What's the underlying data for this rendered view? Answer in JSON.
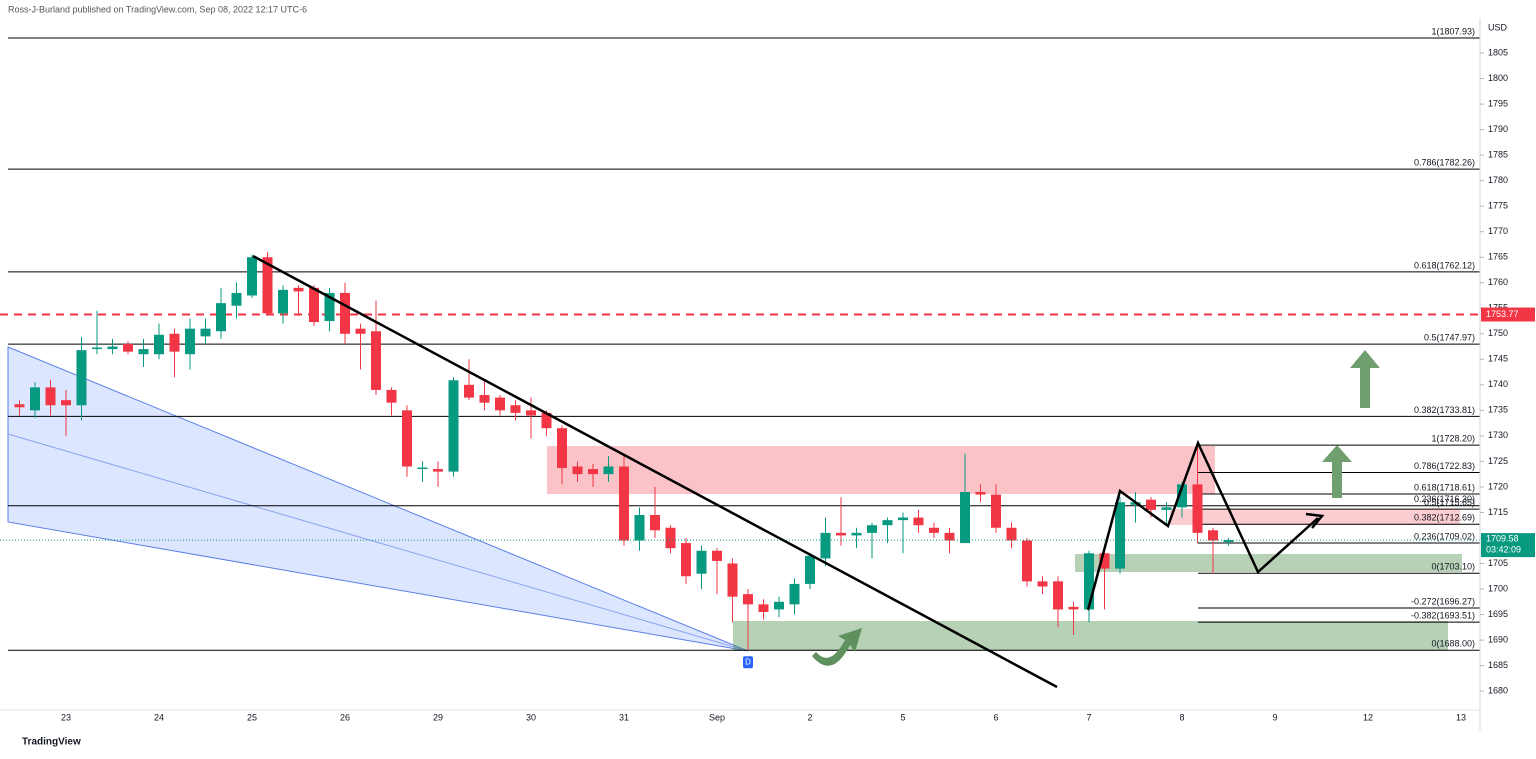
{
  "header": "Ross-J-Burland published on TradingView.com, Sep 08, 2022 12:17 UTC-6",
  "footer_logo": "TradingView",
  "chart_data": {
    "type": "candlestick",
    "currency": "USD",
    "up_color": "#089981",
    "down_color": "#f23645",
    "ylim": [
      1676.3,
      1811.86
    ],
    "yticks": [
      1680,
      1685,
      1690,
      1695,
      1700,
      1705,
      1710,
      1715,
      1720,
      1725,
      1730,
      1735,
      1740,
      1745,
      1750,
      1755,
      1760,
      1765,
      1770,
      1775,
      1780,
      1785,
      1790,
      1795,
      1800,
      1805
    ],
    "grid": false,
    "categories": [
      null,
      null,
      null,
      "23",
      null,
      null,
      null,
      null,
      null,
      "24",
      null,
      null,
      null,
      null,
      null,
      "25",
      null,
      null,
      null,
      null,
      null,
      "26",
      null,
      null,
      null,
      null,
      null,
      "29",
      null,
      null,
      null,
      null,
      null,
      "30",
      null,
      null,
      null,
      null,
      null,
      "31",
      null,
      null,
      null,
      null,
      null,
      "Sep",
      null,
      null,
      null,
      null,
      null,
      "2",
      null,
      null,
      null,
      null,
      null,
      "5",
      null,
      null,
      null,
      null,
      null,
      "6",
      null,
      null,
      null,
      null,
      null,
      "7",
      null,
      null,
      null,
      null,
      null,
      "8",
      null,
      null,
      null,
      null,
      null,
      "9",
      null,
      null,
      null,
      null,
      null,
      "12",
      null,
      null,
      null,
      null,
      null,
      "13"
    ],
    "open": [
      1736.2,
      1735,
      1739.5,
      1737,
      1736,
      1747,
      1747,
      1748,
      1746,
      1746,
      1750,
      1746,
      1749.5,
      1750.5,
      1755.5,
      1757.5,
      1765,
      1754,
      1759,
      1759,
      1752.5,
      1758,
      1751,
      1750.5,
      1739,
      1735,
      1723.5,
      1723.5,
      1723,
      1740,
      1738,
      1737.5,
      1736,
      1735,
      1734.5,
      1731.5,
      1724,
      1723.5,
      1722.5,
      1724,
      1709.5,
      1714.5,
      1712,
      1709,
      1703,
      1707.5,
      1705,
      1699,
      1697,
      1696,
      1697,
      1701,
      1706,
      1711,
      1710.5,
      1711,
      1712.5,
      1713.5,
      1714,
      1712,
      1711,
      1709,
      1719,
      1718.5,
      1712,
      1709.5,
      1701.5,
      1701.5,
      1696.5,
      1696,
      1707,
      1704,
      1716.5,
      1717.5,
      1715.5,
      1716,
      1720.5,
      1711.5,
      1709.2,
      null,
      null,
      null,
      null,
      null,
      null,
      null,
      null,
      null,
      null,
      null,
      null,
      null,
      null,
      null
    ],
    "high": [
      1737,
      1740.5,
      1741,
      1739,
      1749.4,
      1754.5,
      1749,
      1748.5,
      1749,
      1752,
      1751,
      1753,
      1753,
      1759,
      1760,
      1765.5,
      1766,
      1759.5,
      1759.5,
      1759.5,
      1759,
      1760,
      1752,
      1756.5,
      1739.5,
      1736,
      1725,
      1725,
      1741.5,
      1745,
      1741,
      1738,
      1737,
      1737.5,
      1735,
      1732,
      1725,
      1724.5,
      1726,
      1726,
      1716,
      1720,
      1712.5,
      1710,
      1708.5,
      1708,
      1706,
      1700,
      1698,
      1698.5,
      1702,
      1707,
      1714,
      1718,
      1712,
      1713,
      1714,
      1715,
      1715.5,
      1713,
      1712,
      1726.5,
      1720.5,
      1720.5,
      1713,
      1710,
      1702.5,
      1702.5,
      1697.5,
      1707.5,
      1708,
      1718,
      1719,
      1718,
      1717,
      1721,
      1728.2,
      1712,
      1710,
      null,
      null,
      null,
      null,
      null,
      null,
      null,
      null,
      null,
      null,
      null,
      null,
      null,
      null,
      null
    ],
    "low": [
      1734,
      1733.5,
      1734,
      1730,
      1733,
      1746,
      1746,
      1746,
      1743.5,
      1745,
      1741.5,
      1743,
      1748,
      1749,
      1753,
      1757,
      1753.5,
      1752,
      1753.5,
      1751.5,
      1750.5,
      1748,
      1743,
      1738,
      1734,
      1722,
      1721,
      1720,
      1722,
      1737,
      1735,
      1734,
      1733,
      1729.5,
      1730,
      1720.5,
      1721,
      1720,
      1721,
      1708.5,
      1707.5,
      1710,
      1707,
      1701,
      1700,
      1699,
      1693.5,
      1688,
      1694,
      1694.5,
      1695,
      1700,
      1704.5,
      1708.5,
      1708,
      1706,
      1709,
      1707,
      1711,
      1710,
      1707,
      1709,
      1717,
      1711,
      1708,
      1700.5,
      1699,
      1692.5,
      1691,
      1693.5,
      1696,
      1703,
      1713,
      1714,
      1712.5,
      1714,
      1709,
      1703,
      1708.5,
      null,
      null,
      null,
      null,
      null,
      null,
      null,
      null,
      null,
      null,
      null,
      null,
      null,
      null,
      null
    ],
    "close": [
      1735.6,
      1739.5,
      1736,
      1736,
      1746.8,
      1747.3,
      1747.5,
      1746.5,
      1747,
      1749.8,
      1746.5,
      1751,
      1751,
      1756,
      1758,
      1765,
      1754,
      1758.6,
      1758.3,
      1752.3,
      1758,
      1750,
      1750,
      1739,
      1736.5,
      1724,
      1723.8,
      1723,
      1740.9,
      1737.5,
      1736.5,
      1735,
      1734.5,
      1734,
      1731.5,
      1723.7,
      1722.5,
      1722.5,
      1724,
      1709.5,
      1714.5,
      1711.5,
      1708,
      1702.5,
      1707.5,
      1705.5,
      1698.5,
      1697,
      1695.5,
      1697.5,
      1701,
      1706.5,
      1711,
      1710.5,
      1711,
      1712.5,
      1713.5,
      1714,
      1712.5,
      1711,
      1709.5,
      1719,
      1718.5,
      1712,
      1709.5,
      1701.5,
      1700.5,
      1696,
      1696,
      1707,
      1704,
      1717,
      1717,
      1715.5,
      1716,
      1720.5,
      1711,
      1709.5,
      1709.58,
      null,
      null,
      null,
      null,
      null,
      null,
      null,
      null,
      null,
      null,
      null,
      null,
      null,
      null,
      null
    ],
    "fib_levels": [
      {
        "value": 1807.93,
        "label": "1(1807.93)"
      },
      {
        "value": 1782.26,
        "label": "0.786(1782.26)"
      },
      {
        "value": 1762.12,
        "label": "0.618(1762.12)"
      },
      {
        "value": 1747.97,
        "label": "0.5(1747.97)"
      },
      {
        "value": 1733.81,
        "label": "0.382(1733.81)"
      },
      {
        "value": 1716.3,
        "label": "0.236(1716.30)"
      },
      {
        "value": 1688,
        "label": "0(1688.00)"
      }
    ],
    "fib_levels_2": [
      {
        "value": 1728.2,
        "label": "1(1728.20)"
      },
      {
        "value": 1722.83,
        "label": "0.786(1722.83)"
      },
      {
        "value": 1718.61,
        "label": "0.618(1718.61)"
      },
      {
        "value": 1715.65,
        "label": "0.5(1715.65)"
      },
      {
        "value": 1712.69,
        "label": "0.382(1712.69)"
      },
      {
        "value": 1709.02,
        "label": "0.236(1709.02)"
      },
      {
        "value": 1703.1,
        "label": "0(1703.10)"
      },
      {
        "value": 1696.27,
        "label": "-0.272(1696.27)"
      },
      {
        "value": 1693.51,
        "label": "-0.382(1693.51)"
      }
    ],
    "alert_line": {
      "value": 1753.77,
      "color": "#f23645"
    },
    "last_price": {
      "value": 1709.58,
      "countdown": "03:42:09",
      "color": "#089981"
    },
    "event_marker": "D"
  }
}
